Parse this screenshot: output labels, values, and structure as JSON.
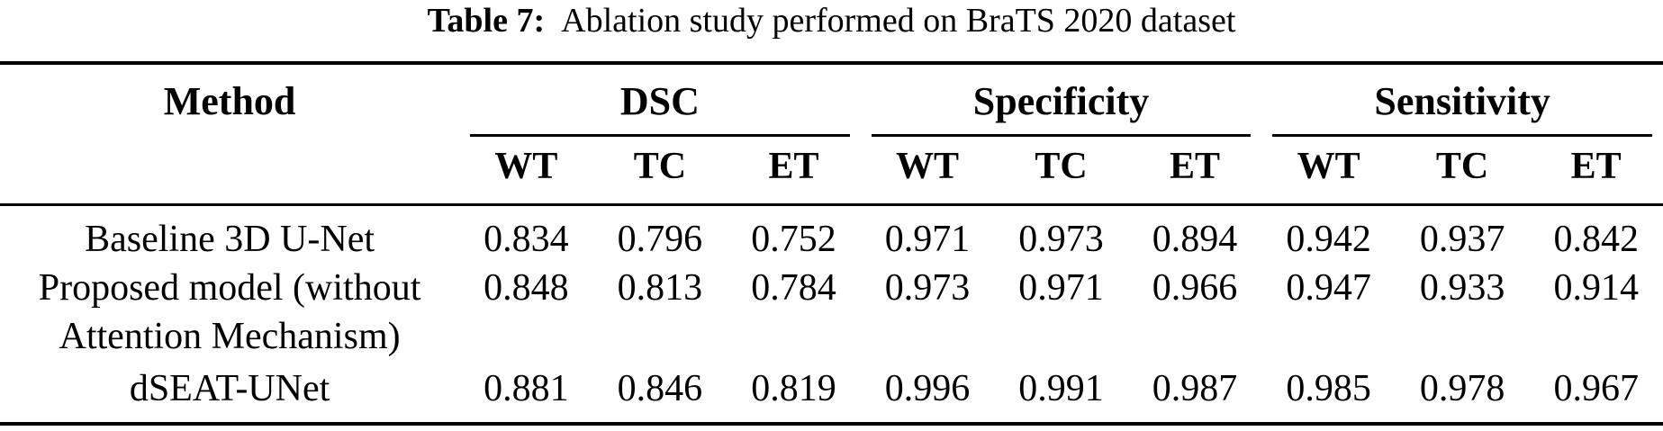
{
  "colors": {
    "background": "#ffffff",
    "text": "#000000",
    "rule": "#000000"
  },
  "caption": {
    "label": "Table 7:",
    "text": "Ablation study performed on BraTS 2020 dataset"
  },
  "table": {
    "method_header": "Method",
    "groups": [
      {
        "label": "DSC",
        "subcols": [
          "WT",
          "TC",
          "ET"
        ]
      },
      {
        "label": "Specificity",
        "subcols": [
          "WT",
          "TC",
          "ET"
        ]
      },
      {
        "label": "Sensitivity",
        "subcols": [
          "WT",
          "TC",
          "ET"
        ]
      }
    ],
    "rows": [
      {
        "method_lines": [
          "Baseline 3D U-Net"
        ],
        "values": [
          "0.834",
          "0.796",
          "0.752",
          "0.971",
          "0.973",
          "0.894",
          "0.942",
          "0.937",
          "0.842"
        ]
      },
      {
        "method_lines": [
          "Proposed model (without",
          "Attention Mechanism)"
        ],
        "values": [
          "0.848",
          "0.813",
          "0.784",
          "0.973",
          "0.971",
          "0.966",
          "0.947",
          "0.933",
          "0.914"
        ]
      },
      {
        "method_lines": [
          "dSEAT-UNet"
        ],
        "values": [
          "0.881",
          "0.846",
          "0.819",
          "0.996",
          "0.991",
          "0.987",
          "0.985",
          "0.978",
          "0.967"
        ]
      }
    ]
  },
  "chart_data": {
    "type": "table",
    "title": "Table 7: Ablation study performed on BraTS 2020 dataset",
    "column_groups": [
      "DSC",
      "Specificity",
      "Sensitivity"
    ],
    "sub_columns": [
      "WT",
      "TC",
      "ET"
    ],
    "rows": [
      {
        "method": "Baseline 3D U-Net",
        "DSC": [
          0.834,
          0.796,
          0.752
        ],
        "Specificity": [
          0.971,
          0.973,
          0.894
        ],
        "Sensitivity": [
          0.942,
          0.937,
          0.842
        ]
      },
      {
        "method": "Proposed model (without Attention Mechanism)",
        "DSC": [
          0.848,
          0.813,
          0.784
        ],
        "Specificity": [
          0.973,
          0.971,
          0.966
        ],
        "Sensitivity": [
          0.947,
          0.933,
          0.914
        ]
      },
      {
        "method": "dSEAT-UNet",
        "DSC": [
          0.881,
          0.846,
          0.819
        ],
        "Specificity": [
          0.996,
          0.991,
          0.987
        ],
        "Sensitivity": [
          0.985,
          0.978,
          0.967
        ]
      }
    ]
  }
}
